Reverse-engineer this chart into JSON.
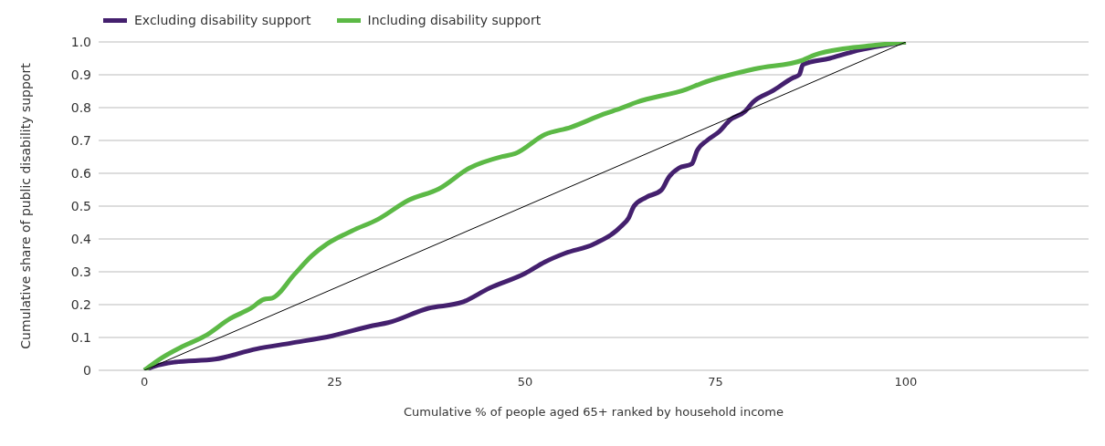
{
  "chart_data": {
    "type": "line",
    "xlabel": "Cumulative % of people aged 65+ ranked by household income",
    "ylabel": "Cumulative share of public disability support",
    "xlim": [
      -6,
      124
    ],
    "xticks": [
      0,
      25,
      50,
      75,
      100
    ],
    "ylim": [
      0,
      1
    ],
    "yticks": [
      0,
      {
        "value": 0.1,
        "label": "0.1"
      },
      {
        "value": 0.2,
        "label": "0.2"
      },
      {
        "value": 0.3,
        "label": "0.3"
      },
      {
        "value": 0.4,
        "label": "0.4"
      },
      {
        "value": 0.5,
        "label": "0.5"
      },
      {
        "value": 0.6,
        "label": "0.6"
      },
      {
        "value": 0.7,
        "label": "0.7"
      },
      {
        "value": 0.8,
        "label": "0.8"
      },
      {
        "value": 0.9,
        "label": "0.9"
      },
      {
        "value": 1,
        "label": "1.0"
      }
    ],
    "grid": "y",
    "legend": "top left",
    "marker": "none",
    "line_style": "solid",
    "series": [
      {
        "name": "Excluding disability support",
        "color": "#44206e",
        "x": [
          0,
          1.3,
          4,
          9.3,
          14.7,
          19.3,
          24.7,
          30,
          32,
          37.3,
          41.7,
          45.3,
          50,
          52.6,
          55.3,
          59,
          62.6,
          63.6,
          64.3,
          65.9,
          67.9,
          68.9,
          70.2,
          71.9,
          72.6,
          73.9,
          75.5,
          76.9,
          78.9,
          79.9,
          82.5,
          85.2,
          86,
          86.5,
          90,
          93,
          96,
          100
        ],
        "values": [
          0,
          0.012,
          0.025,
          0.034,
          0.065,
          0.083,
          0.105,
          0.136,
          0.145,
          0.189,
          0.207,
          0.25,
          0.295,
          0.33,
          0.357,
          0.384,
          0.438,
          0.464,
          0.5,
          0.527,
          0.549,
          0.589,
          0.616,
          0.629,
          0.669,
          0.7,
          0.727,
          0.762,
          0.789,
          0.816,
          0.851,
          0.891,
          0.9,
          0.931,
          0.95,
          0.97,
          0.985,
          1
        ]
      },
      {
        "name": "Including disability support",
        "color": "#5cb946",
        "x": [
          0,
          2.3,
          4.7,
          8,
          11.3,
          14,
          15.7,
          16.8,
          19.7,
          22,
          24,
          27.3,
          30.7,
          34.7,
          38.7,
          42.7,
          47,
          48.7,
          52.6,
          56,
          60.3,
          62.6,
          64.6,
          71.2,
          73.2,
          80.2,
          86.5,
          88,
          92,
          96,
          100
        ],
        "values": [
          0,
          0.038,
          0.069,
          0.105,
          0.158,
          0.189,
          0.216,
          0.22,
          0.292,
          0.349,
          0.385,
          0.425,
          0.46,
          0.518,
          0.553,
          0.616,
          0.651,
          0.66,
          0.718,
          0.74,
          0.78,
          0.798,
          0.816,
          0.856,
          0.874,
          0.918,
          0.945,
          0.96,
          0.98,
          0.99,
          1
        ]
      },
      {
        "color": "#000000",
        "x": [
          0,
          100
        ],
        "values": [
          0,
          1
        ],
        "line_style": "solid"
      }
    ]
  }
}
